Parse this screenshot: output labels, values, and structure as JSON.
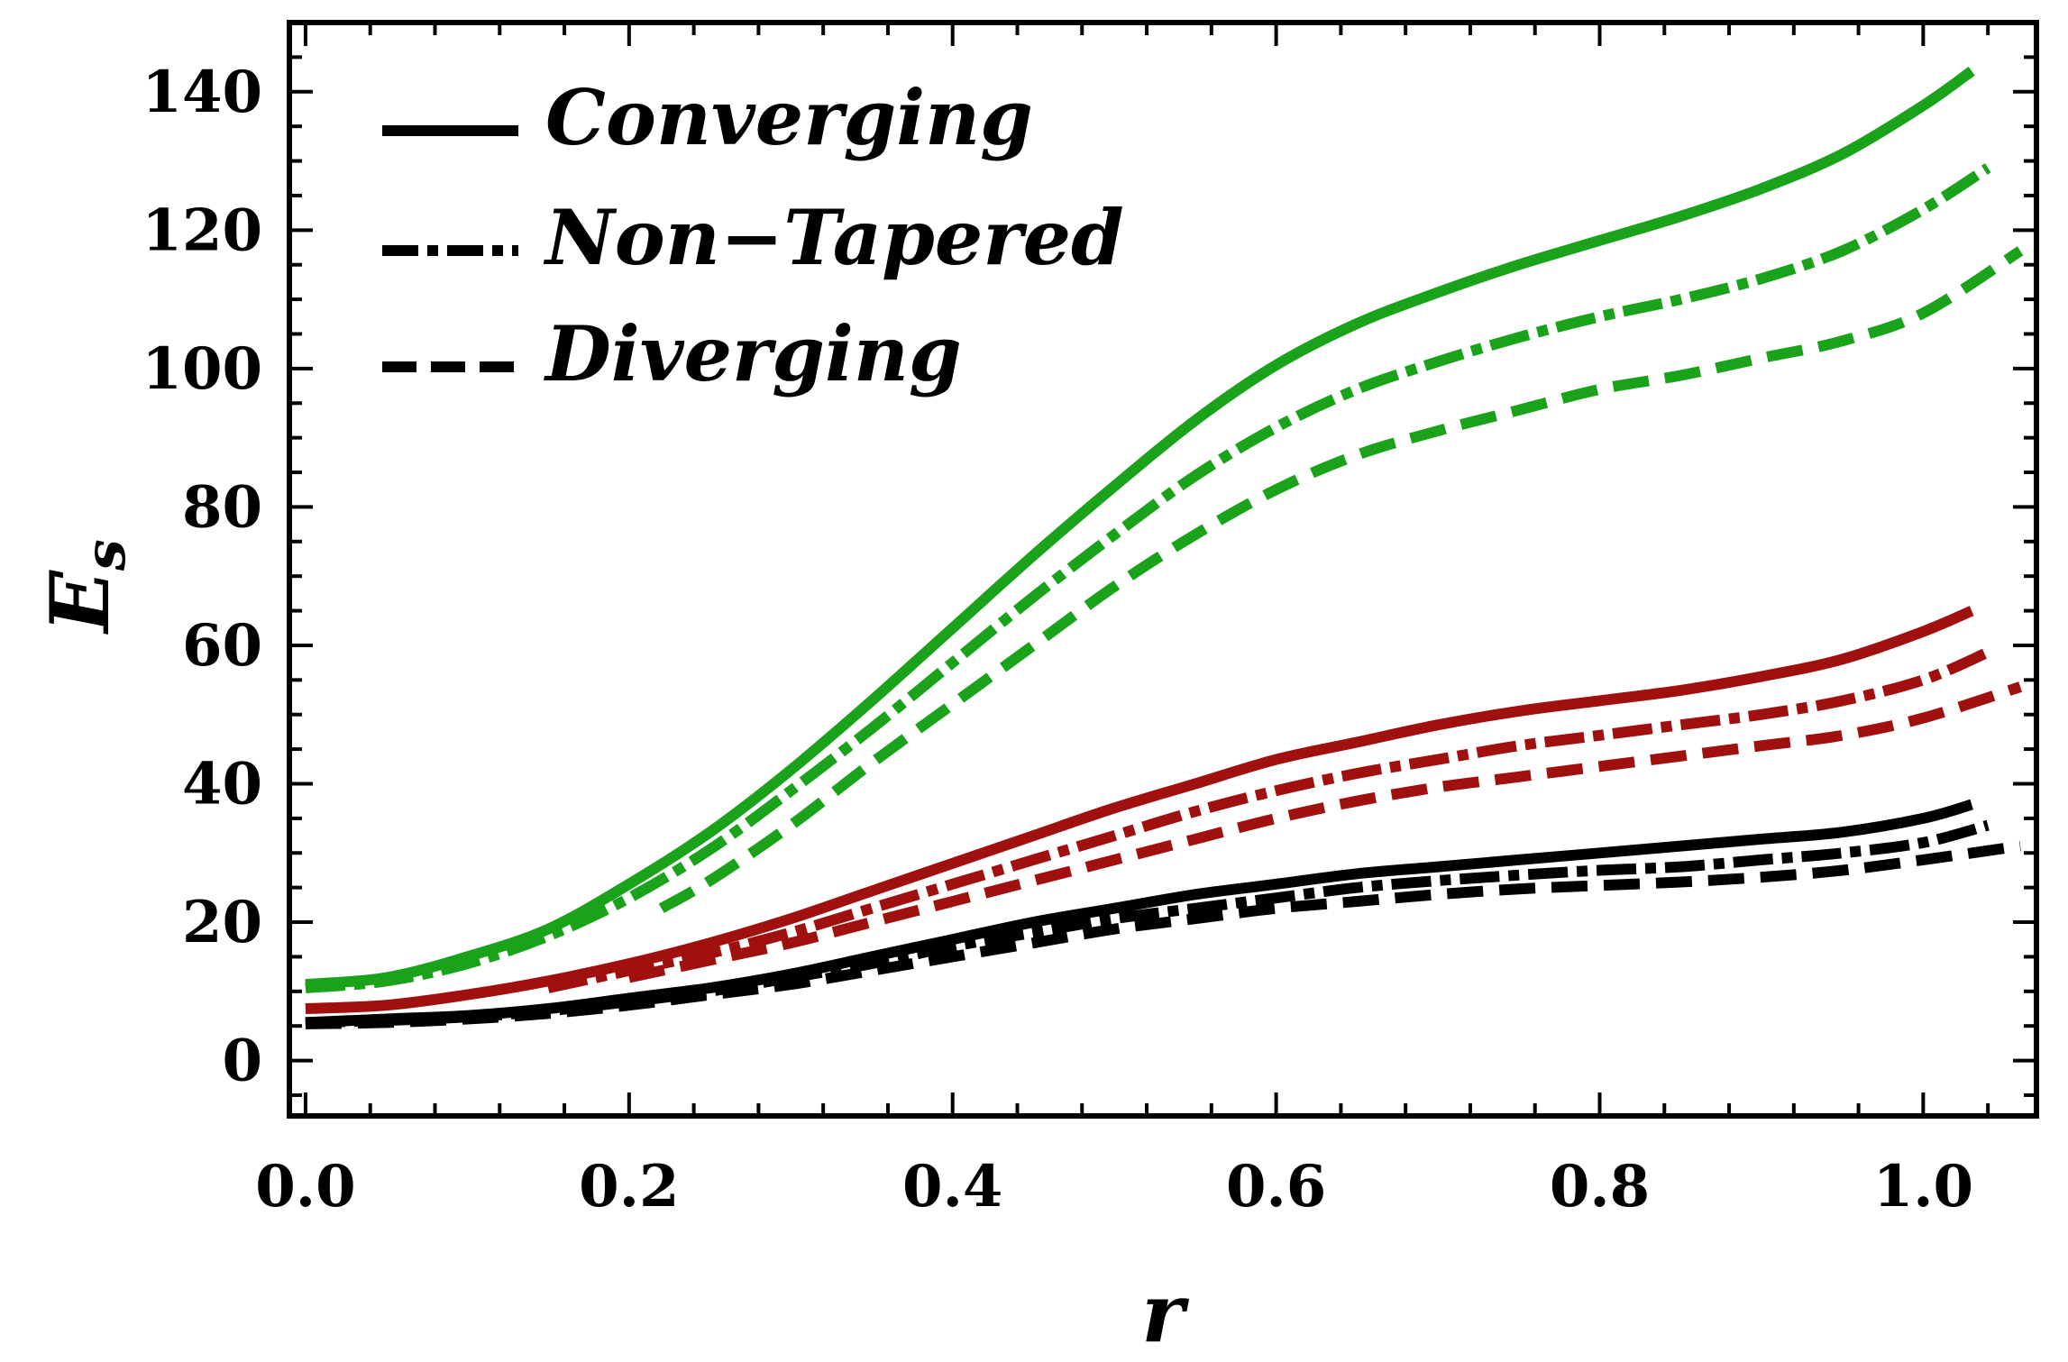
{
  "chart_data": {
    "type": "line",
    "title": "",
    "xlabel": "r",
    "ylabel": "E",
    "ylabel_subscript": "s",
    "xlim": [
      -0.01,
      1.07
    ],
    "ylim": [
      -8,
      150
    ],
    "xticks": [
      0.0,
      0.2,
      0.4,
      0.6,
      0.8,
      1.0
    ],
    "xtick_labels": [
      "0.0",
      "0.2",
      "0.4",
      "0.6",
      "0.8",
      "1.0"
    ],
    "yticks": [
      0,
      20,
      40,
      60,
      80,
      100,
      120,
      140
    ],
    "ytick_labels": [
      "0",
      "20",
      "40",
      "60",
      "80",
      "100",
      "120",
      "140"
    ],
    "legend_position": "top-left",
    "legend": [
      {
        "label": "Converging",
        "dash": "solid"
      },
      {
        "label": "Non−Tapered",
        "dash": "dash-dot"
      },
      {
        "label": "Diverging",
        "dash": "dashed"
      }
    ],
    "series": [
      {
        "name": "Converging (green)",
        "color": "#1aa21a",
        "dash": "solid",
        "x": [
          0,
          0.05,
          0.1,
          0.15,
          0.2,
          0.25,
          0.3,
          0.35,
          0.4,
          0.45,
          0.5,
          0.55,
          0.6,
          0.65,
          0.7,
          0.75,
          0.8,
          0.85,
          0.9,
          0.95,
          1.0,
          1.03
        ],
        "y": [
          11,
          12,
          15,
          19,
          25.5,
          33,
          42,
          52,
          62.5,
          73,
          83,
          92.5,
          100.5,
          106.5,
          111,
          115,
          118.5,
          122,
          126,
          131,
          138,
          143
        ]
      },
      {
        "name": "Non-Tapered (green)",
        "color": "#1aa21a",
        "dash": "dashdot",
        "x": [
          0,
          0.05,
          0.1,
          0.15,
          0.2,
          0.25,
          0.3,
          0.35,
          0.4,
          0.45,
          0.5,
          0.55,
          0.6,
          0.65,
          0.7,
          0.75,
          0.8,
          0.85,
          0.9,
          0.95,
          1.0,
          1.04
        ],
        "y": [
          10.5,
          11.5,
          14,
          18,
          23.5,
          30.5,
          39,
          48,
          57.5,
          67,
          76,
          84.5,
          91.5,
          97,
          101,
          104.5,
          107.5,
          110,
          113,
          117,
          123,
          129
        ]
      },
      {
        "name": "Diverging (green)",
        "color": "#1aa21a",
        "dash": "dashed",
        "x": [
          0.22,
          0.25,
          0.3,
          0.35,
          0.4,
          0.45,
          0.5,
          0.55,
          0.6,
          0.65,
          0.7,
          0.75,
          0.8,
          0.85,
          0.9,
          0.95,
          1.0,
          1.06
        ],
        "y": [
          22,
          26,
          34,
          43,
          51.5,
          60,
          68.5,
          76,
          82.5,
          87.5,
          91,
          94,
          97,
          99,
          101.5,
          104,
          108,
          117
        ]
      },
      {
        "name": "Converging (red)",
        "color": "#a0100e",
        "dash": "solid",
        "x": [
          0,
          0.05,
          0.1,
          0.15,
          0.2,
          0.25,
          0.3,
          0.35,
          0.4,
          0.45,
          0.5,
          0.55,
          0.6,
          0.65,
          0.7,
          0.75,
          0.8,
          0.85,
          0.9,
          0.95,
          1.0,
          1.03
        ],
        "y": [
          7.5,
          8,
          9.5,
          11.5,
          14,
          17,
          20.5,
          24.5,
          28.5,
          32.5,
          36.5,
          40,
          43.5,
          46,
          48.5,
          50.5,
          52,
          53.5,
          55.5,
          58,
          62,
          65
        ]
      },
      {
        "name": "Non-Tapered (red)",
        "color": "#a0100e",
        "dash": "dashdot",
        "x": [
          0.15,
          0.2,
          0.25,
          0.3,
          0.35,
          0.4,
          0.45,
          0.5,
          0.55,
          0.6,
          0.65,
          0.7,
          0.75,
          0.8,
          0.85,
          0.9,
          0.95,
          1.0,
          1.04
        ],
        "y": [
          10.5,
          13,
          15.5,
          18.5,
          22,
          25.5,
          29,
          32.5,
          36,
          39,
          41.5,
          43.5,
          45.5,
          47,
          48.5,
          50,
          52,
          55,
          59
        ]
      },
      {
        "name": "Diverging (red)",
        "color": "#a0100e",
        "dash": "dashed",
        "x": [
          0.2,
          0.25,
          0.3,
          0.35,
          0.4,
          0.45,
          0.5,
          0.55,
          0.6,
          0.65,
          0.7,
          0.75,
          0.8,
          0.85,
          0.9,
          0.95,
          1.0,
          1.06
        ],
        "y": [
          12,
          14.5,
          17,
          20,
          23,
          26,
          29,
          32,
          35,
          37.5,
          39.5,
          41,
          42.5,
          44,
          45.5,
          47,
          49.5,
          54
        ]
      },
      {
        "name": "Converging (black)",
        "color": "#000000",
        "dash": "solid",
        "x": [
          0,
          0.05,
          0.1,
          0.15,
          0.2,
          0.25,
          0.3,
          0.35,
          0.4,
          0.45,
          0.5,
          0.55,
          0.6,
          0.65,
          0.7,
          0.75,
          0.8,
          0.85,
          0.9,
          0.95,
          1.0,
          1.03
        ],
        "y": [
          5.5,
          6,
          6.5,
          7.5,
          9,
          10.5,
          12.5,
          15,
          17.5,
          20,
          22,
          24,
          25.5,
          27,
          28,
          29,
          30,
          31,
          32,
          33,
          35,
          37
        ]
      },
      {
        "name": "Non-Tapered (black)",
        "color": "#000000",
        "dash": "dashdot",
        "x": [
          0,
          0.05,
          0.1,
          0.15,
          0.2,
          0.25,
          0.3,
          0.35,
          0.4,
          0.45,
          0.5,
          0.55,
          0.6,
          0.65,
          0.7,
          0.75,
          0.8,
          0.85,
          0.9,
          0.95,
          1.0,
          1.04
        ],
        "y": [
          5.5,
          5.8,
          6.3,
          7.2,
          8.5,
          10,
          12,
          14,
          16.5,
          18.5,
          20.5,
          22,
          23.5,
          25,
          26,
          26.8,
          27.5,
          28,
          29,
          30,
          31.5,
          34
        ]
      },
      {
        "name": "Diverging (black)",
        "color": "#000000",
        "dash": "dashed",
        "x": [
          0,
          0.05,
          0.1,
          0.15,
          0.2,
          0.25,
          0.3,
          0.35,
          0.4,
          0.45,
          0.5,
          0.55,
          0.6,
          0.65,
          0.7,
          0.75,
          0.8,
          0.85,
          0.9,
          0.95,
          1.0,
          1.06
        ],
        "y": [
          5.3,
          5.5,
          6,
          6.8,
          8,
          9.5,
          11,
          13,
          15,
          17,
          19,
          20.5,
          22,
          23,
          24,
          24.8,
          25.3,
          25.8,
          26.5,
          27.5,
          29,
          31
        ]
      }
    ]
  }
}
